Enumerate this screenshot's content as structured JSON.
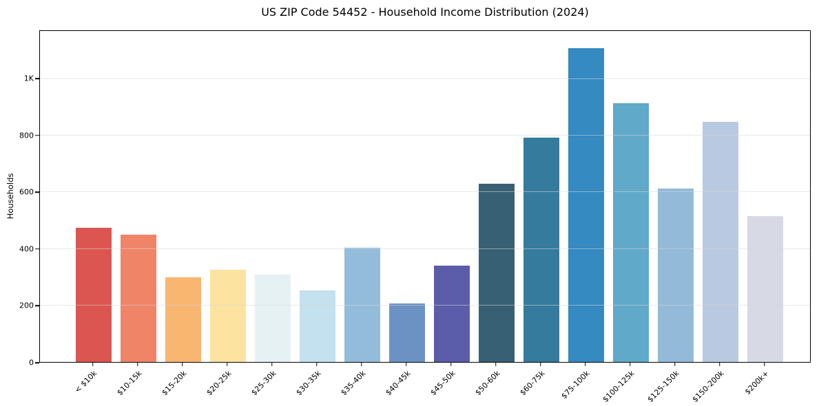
{
  "chart_data": {
    "type": "bar",
    "title": "US ZIP Code 54452 - Household Income Distribution (2024)",
    "xlabel": "",
    "ylabel": "Households",
    "categories": [
      "< $10k",
      "$10-15k",
      "$15-20k",
      "$20-25k",
      "$25-30k",
      "$30-35k",
      "$35-40k",
      "$40-45k",
      "$45-50k",
      "$50-60k",
      "$60-75k",
      "$75-100k",
      "$100-125k",
      "$125-150k",
      "$150-200k",
      "$200k+"
    ],
    "values": [
      474,
      450,
      300,
      326,
      309,
      252,
      403,
      206,
      341,
      629,
      793,
      1110,
      914,
      613,
      848,
      516
    ],
    "bar_colors": [
      "#db5651",
      "#f08466",
      "#f9b671",
      "#fce3a0",
      "#e6f1f3",
      "#c3e1ee",
      "#93bcdb",
      "#6b92c3",
      "#5b5dab",
      "#386074",
      "#357b9e",
      "#348ac1",
      "#60a9c9",
      "#93bad9",
      "#bac9e2",
      "#d7d9e5"
    ],
    "ylim": [
      0,
      1170
    ],
    "yticks": [
      {
        "value": 0,
        "label": "0"
      },
      {
        "value": 200,
        "label": "200"
      },
      {
        "value": 400,
        "label": "400"
      },
      {
        "value": 600,
        "label": "600"
      },
      {
        "value": 800,
        "label": "800"
      },
      {
        "value": 1000,
        "label": "1K"
      }
    ],
    "grid": "horizontal",
    "legend": "none",
    "colors": {
      "background": "#ffffff",
      "spine": "#000000",
      "gridline": "#d7d7d7",
      "text": "#000000"
    }
  }
}
